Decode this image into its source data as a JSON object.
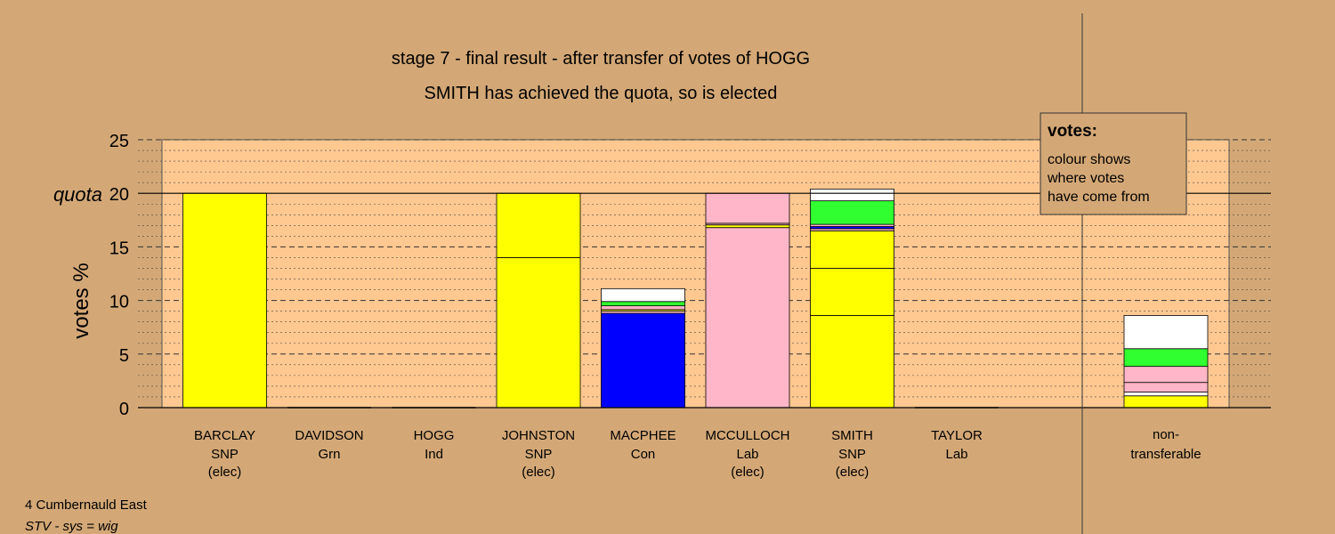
{
  "chart_data": {
    "type": "bar",
    "stacked": true,
    "title": "stage 7 - final result - after transfer of votes of HOGG",
    "subtitle": "SMITH has achieved the quota, so is elected",
    "ylabel": "votes %",
    "ylim": [
      0,
      25
    ],
    "yticks": [
      0,
      5,
      10,
      15,
      20,
      25
    ],
    "quota": 20,
    "quota_label": "quota",
    "grid": true,
    "categories": [
      {
        "name": "BARCLAY",
        "party": "SNP",
        "status": "(elec)"
      },
      {
        "name": "DAVIDSON",
        "party": "Grn",
        "status": ""
      },
      {
        "name": "HOGG",
        "party": "Ind",
        "status": ""
      },
      {
        "name": "JOHNSTON",
        "party": "SNP",
        "status": "(elec)"
      },
      {
        "name": "MACPHEE",
        "party": "Con",
        "status": ""
      },
      {
        "name": "MCCULLOCH",
        "party": "Lab",
        "status": "(elec)"
      },
      {
        "name": "SMITH",
        "party": "SNP",
        "status": "(elec)"
      },
      {
        "name": "TAYLOR",
        "party": "Lab",
        "status": ""
      }
    ],
    "bars": [
      [
        {
          "value": 20.0,
          "color": "#ffff00"
        }
      ],
      [],
      [],
      [
        {
          "value": 14.0,
          "color": "#ffff00"
        },
        {
          "value": 6.0,
          "color": "#ffff00"
        }
      ],
      [
        {
          "value": 8.8,
          "color": "#0000ff"
        },
        {
          "value": 0.2,
          "color": "#ffb6c8"
        },
        {
          "value": 0.15,
          "color": "#ffff00"
        },
        {
          "value": 0.35,
          "color": "#ffb6c8"
        },
        {
          "value": 0.4,
          "color": "#30ff30"
        },
        {
          "value": 1.2,
          "color": "#ffffff"
        }
      ],
      [
        {
          "value": 16.8,
          "color": "#ffb6c8"
        },
        {
          "value": 0.25,
          "color": "#ffff00"
        },
        {
          "value": 0.15,
          "color": "#ffb6c8"
        },
        {
          "value": 2.8,
          "color": "#ffb6c8"
        }
      ],
      [
        {
          "value": 8.6,
          "color": "#ffff00"
        },
        {
          "value": 4.4,
          "color": "#ffff00"
        },
        {
          "value": 3.5,
          "color": "#ffff00"
        },
        {
          "value": 0.2,
          "color": "#ffb6c8"
        },
        {
          "value": 0.2,
          "color": "#0000ff"
        },
        {
          "value": 0.2,
          "color": "#ffb6c8"
        },
        {
          "value": 2.2,
          "color": "#30ff30"
        },
        {
          "value": 1.1,
          "color": "#ffffff"
        }
      ],
      []
    ],
    "nontransferable": {
      "label_line1": "non-",
      "label_line2": "transferable",
      "segments": [
        {
          "value": 1.1,
          "color": "#ffff00"
        },
        {
          "value": 0.35,
          "color": "#ffffff"
        },
        {
          "value": 0.9,
          "color": "#ffb6c8"
        },
        {
          "value": 1.5,
          "color": "#ffb6c8"
        },
        {
          "value": 1.65,
          "color": "#30ff30"
        },
        {
          "value": 3.1,
          "color": "#ffffff"
        }
      ]
    },
    "legend": {
      "position": "top-right",
      "title": "votes:",
      "lines": [
        "colour shows",
        "where votes",
        "have come from"
      ]
    }
  },
  "footer": {
    "ward": "4 Cumbernauld East",
    "system": "STV - sys = wig"
  },
  "colors": {
    "background": "#d4a876",
    "plot_area": "#ffc891",
    "snp": "#ffff00",
    "con": "#0000ff",
    "lab": "#ffb6c8",
    "grn": "#30ff30",
    "other": "#ffffff"
  }
}
